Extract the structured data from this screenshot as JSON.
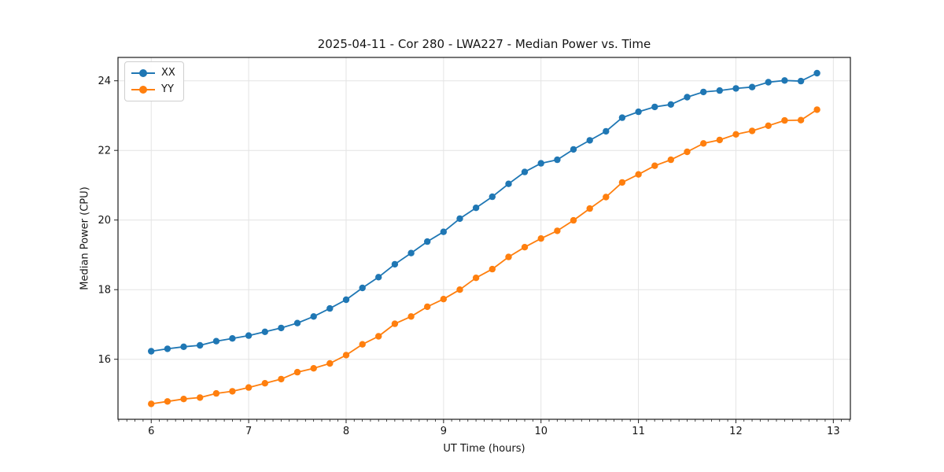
{
  "chart_data": {
    "type": "line",
    "title": "2025-04-11 - Cor 280 - LWA227 - Median Power vs. Time",
    "xlabel": "UT Time (hours)",
    "ylabel": "Median Power (CPU)",
    "xlim": [
      5.659,
      13.175
    ],
    "ylim": [
      14.276,
      24.671
    ],
    "xticks": [
      6,
      7,
      8,
      9,
      10,
      11,
      12,
      13
    ],
    "yticks": [
      16,
      18,
      20,
      22,
      24
    ],
    "x_minor_step": 0.08333,
    "grid": true,
    "grid_color": "#e4e4e4",
    "legend_position": "upper-left",
    "x": [
      6.0,
      6.167,
      6.333,
      6.5,
      6.667,
      6.833,
      7.0,
      7.167,
      7.333,
      7.5,
      7.667,
      7.833,
      8.0,
      8.167,
      8.333,
      8.5,
      8.667,
      8.833,
      9.0,
      9.167,
      9.333,
      9.5,
      9.667,
      9.833,
      10.0,
      10.167,
      10.333,
      10.5,
      10.667,
      10.833,
      11.0,
      11.167,
      11.333,
      11.5,
      11.667,
      11.833,
      12.0,
      12.167,
      12.333,
      12.5,
      12.667,
      12.833
    ],
    "series": [
      {
        "name": "XX",
        "color": "#1f77b4",
        "values": [
          16.23,
          16.3,
          16.36,
          16.4,
          16.52,
          16.6,
          16.68,
          16.79,
          16.9,
          17.04,
          17.23,
          17.46,
          17.71,
          18.05,
          18.36,
          18.73,
          19.05,
          19.38,
          19.66,
          20.04,
          20.35,
          20.67,
          21.04,
          21.38,
          21.63,
          21.73,
          22.03,
          22.29,
          22.55,
          22.94,
          23.11,
          23.25,
          23.32,
          23.53,
          23.68,
          23.72,
          23.78,
          23.82,
          23.96,
          24.01,
          23.99,
          24.22
        ]
      },
      {
        "name": "YY",
        "color": "#ff7f0e",
        "values": [
          14.72,
          14.79,
          14.86,
          14.9,
          15.02,
          15.08,
          15.19,
          15.31,
          15.43,
          15.63,
          15.74,
          15.88,
          16.12,
          16.43,
          16.66,
          17.02,
          17.23,
          17.51,
          17.73,
          18.0,
          18.34,
          18.59,
          18.94,
          19.22,
          19.47,
          19.69,
          19.99,
          20.33,
          20.66,
          21.08,
          21.31,
          21.56,
          21.73,
          21.96,
          22.2,
          22.3,
          22.46,
          22.56,
          22.71,
          22.86,
          22.87,
          23.17
        ]
      }
    ]
  }
}
